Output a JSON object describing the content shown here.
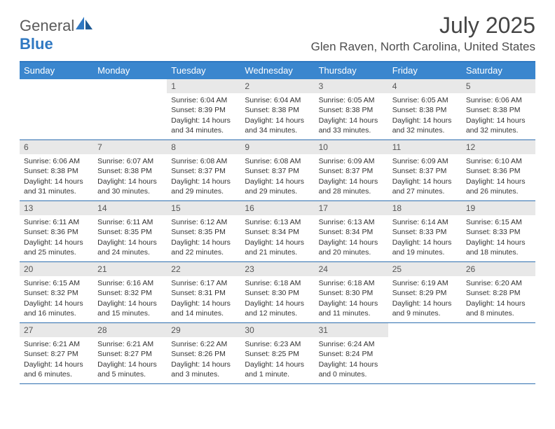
{
  "brand": {
    "text1": "General",
    "text2": "Blue"
  },
  "title": {
    "month_year": "July 2025",
    "location": "Glen Raven, North Carolina, United States"
  },
  "colors": {
    "header_bg": "#3a86ce",
    "header_border": "#2f78c2",
    "row_border": "#2f6fb0",
    "daynum_bg": "#e8e8e8",
    "text_body": "#333333",
    "text_muted": "#555555",
    "logo_gray": "#5a5a5a",
    "logo_blue": "#2f78c2"
  },
  "day_names": [
    "Sunday",
    "Monday",
    "Tuesday",
    "Wednesday",
    "Thursday",
    "Friday",
    "Saturday"
  ],
  "weeks": [
    [
      null,
      null,
      {
        "n": "1",
        "sr": "6:04 AM",
        "ss": "8:39 PM",
        "dl": "14 hours and 34 minutes."
      },
      {
        "n": "2",
        "sr": "6:04 AM",
        "ss": "8:38 PM",
        "dl": "14 hours and 34 minutes."
      },
      {
        "n": "3",
        "sr": "6:05 AM",
        "ss": "8:38 PM",
        "dl": "14 hours and 33 minutes."
      },
      {
        "n": "4",
        "sr": "6:05 AM",
        "ss": "8:38 PM",
        "dl": "14 hours and 32 minutes."
      },
      {
        "n": "5",
        "sr": "6:06 AM",
        "ss": "8:38 PM",
        "dl": "14 hours and 32 minutes."
      }
    ],
    [
      {
        "n": "6",
        "sr": "6:06 AM",
        "ss": "8:38 PM",
        "dl": "14 hours and 31 minutes."
      },
      {
        "n": "7",
        "sr": "6:07 AM",
        "ss": "8:38 PM",
        "dl": "14 hours and 30 minutes."
      },
      {
        "n": "8",
        "sr": "6:08 AM",
        "ss": "8:37 PM",
        "dl": "14 hours and 29 minutes."
      },
      {
        "n": "9",
        "sr": "6:08 AM",
        "ss": "8:37 PM",
        "dl": "14 hours and 29 minutes."
      },
      {
        "n": "10",
        "sr": "6:09 AM",
        "ss": "8:37 PM",
        "dl": "14 hours and 28 minutes."
      },
      {
        "n": "11",
        "sr": "6:09 AM",
        "ss": "8:37 PM",
        "dl": "14 hours and 27 minutes."
      },
      {
        "n": "12",
        "sr": "6:10 AM",
        "ss": "8:36 PM",
        "dl": "14 hours and 26 minutes."
      }
    ],
    [
      {
        "n": "13",
        "sr": "6:11 AM",
        "ss": "8:36 PM",
        "dl": "14 hours and 25 minutes."
      },
      {
        "n": "14",
        "sr": "6:11 AM",
        "ss": "8:35 PM",
        "dl": "14 hours and 24 minutes."
      },
      {
        "n": "15",
        "sr": "6:12 AM",
        "ss": "8:35 PM",
        "dl": "14 hours and 22 minutes."
      },
      {
        "n": "16",
        "sr": "6:13 AM",
        "ss": "8:34 PM",
        "dl": "14 hours and 21 minutes."
      },
      {
        "n": "17",
        "sr": "6:13 AM",
        "ss": "8:34 PM",
        "dl": "14 hours and 20 minutes."
      },
      {
        "n": "18",
        "sr": "6:14 AM",
        "ss": "8:33 PM",
        "dl": "14 hours and 19 minutes."
      },
      {
        "n": "19",
        "sr": "6:15 AM",
        "ss": "8:33 PM",
        "dl": "14 hours and 18 minutes."
      }
    ],
    [
      {
        "n": "20",
        "sr": "6:15 AM",
        "ss": "8:32 PM",
        "dl": "14 hours and 16 minutes."
      },
      {
        "n": "21",
        "sr": "6:16 AM",
        "ss": "8:32 PM",
        "dl": "14 hours and 15 minutes."
      },
      {
        "n": "22",
        "sr": "6:17 AM",
        "ss": "8:31 PM",
        "dl": "14 hours and 14 minutes."
      },
      {
        "n": "23",
        "sr": "6:18 AM",
        "ss": "8:30 PM",
        "dl": "14 hours and 12 minutes."
      },
      {
        "n": "24",
        "sr": "6:18 AM",
        "ss": "8:30 PM",
        "dl": "14 hours and 11 minutes."
      },
      {
        "n": "25",
        "sr": "6:19 AM",
        "ss": "8:29 PM",
        "dl": "14 hours and 9 minutes."
      },
      {
        "n": "26",
        "sr": "6:20 AM",
        "ss": "8:28 PM",
        "dl": "14 hours and 8 minutes."
      }
    ],
    [
      {
        "n": "27",
        "sr": "6:21 AM",
        "ss": "8:27 PM",
        "dl": "14 hours and 6 minutes."
      },
      {
        "n": "28",
        "sr": "6:21 AM",
        "ss": "8:27 PM",
        "dl": "14 hours and 5 minutes."
      },
      {
        "n": "29",
        "sr": "6:22 AM",
        "ss": "8:26 PM",
        "dl": "14 hours and 3 minutes."
      },
      {
        "n": "30",
        "sr": "6:23 AM",
        "ss": "8:25 PM",
        "dl": "14 hours and 1 minute."
      },
      {
        "n": "31",
        "sr": "6:24 AM",
        "ss": "8:24 PM",
        "dl": "14 hours and 0 minutes."
      },
      null,
      null
    ]
  ],
  "labels": {
    "sunrise": "Sunrise:",
    "sunset": "Sunset:",
    "daylight": "Daylight:"
  }
}
